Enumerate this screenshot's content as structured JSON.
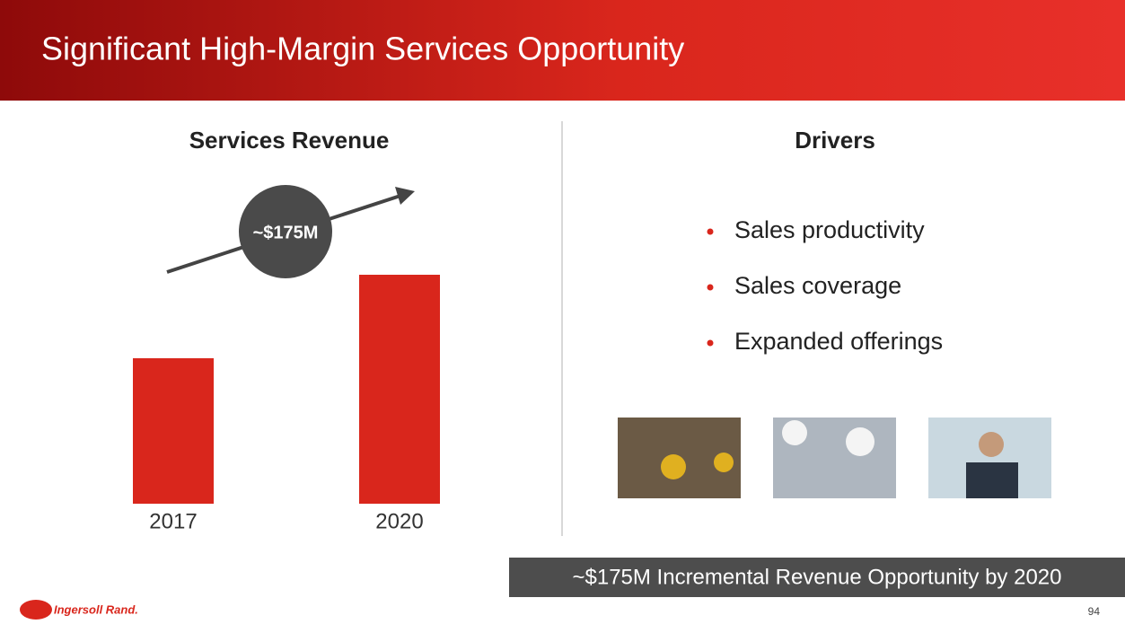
{
  "header": {
    "title": "Significant High-Margin Services Opportunity"
  },
  "chart_data": {
    "type": "bar",
    "title": "Services Revenue",
    "categories": [
      "2017",
      "2020"
    ],
    "values": [
      305,
      480
    ],
    "color": "#d9261c",
    "annotation": "~$175M"
  },
  "drivers": {
    "title": "Drivers",
    "items": [
      "Sales productivity",
      "Sales coverage",
      "Expanded offerings"
    ]
  },
  "footer": {
    "banner": "~$175M Incremental Revenue Opportunity by 2020",
    "logo": "Ingersoll Rand.",
    "page": "94"
  }
}
